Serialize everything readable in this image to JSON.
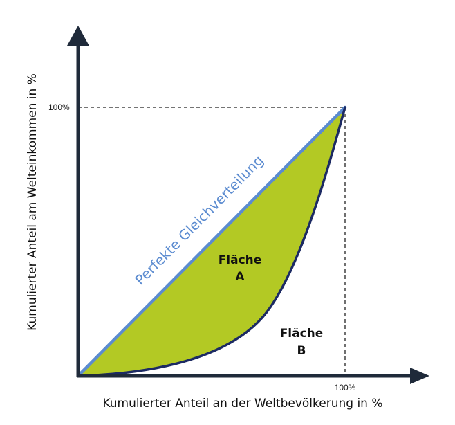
{
  "y_axis": {
    "label": "Kumulierter Anteil am Welteinkommen in %",
    "tick_top": "100%"
  },
  "x_axis": {
    "label": "Kumulierter Anteil an der Weltbevölkerung in %",
    "tick_right": "100%"
  },
  "equality_line": {
    "label": "Perfekte Gleichverteilung"
  },
  "area_a": {
    "line1": "Fläche",
    "line2": "A"
  },
  "area_b": {
    "line1": "Fläche",
    "line2": "B"
  },
  "colors": {
    "axis": "#1f2a3a",
    "equality_line": "#5b8bd0",
    "lorenz_curve": "#1c2a63",
    "area_a_fill": "#b3c924",
    "dashed_guides": "#222222"
  }
}
